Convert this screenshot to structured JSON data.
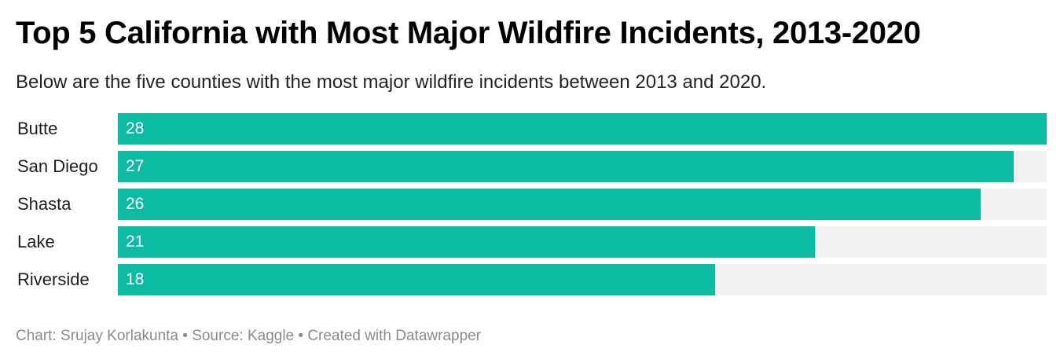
{
  "chart_data": {
    "type": "bar",
    "orientation": "horizontal",
    "title": "Top 5 California with Most Major Wildfire Incidents, 2013-2020",
    "subtitle": "Below are the five counties with the most major wildfire incidents between 2013 and 2020.",
    "categories": [
      "Butte",
      "San Diego",
      "Shasta",
      "Lake",
      "Riverside"
    ],
    "values": [
      28,
      27,
      26,
      21,
      18
    ],
    "xlim": [
      0,
      28
    ],
    "grid": false,
    "legend": "none",
    "bar_color": "#0bbca3",
    "track_color": "#f1f1f1",
    "footer": "Chart: Srujay Korlakunta • Source: Kaggle • Created with Datawrapper"
  }
}
